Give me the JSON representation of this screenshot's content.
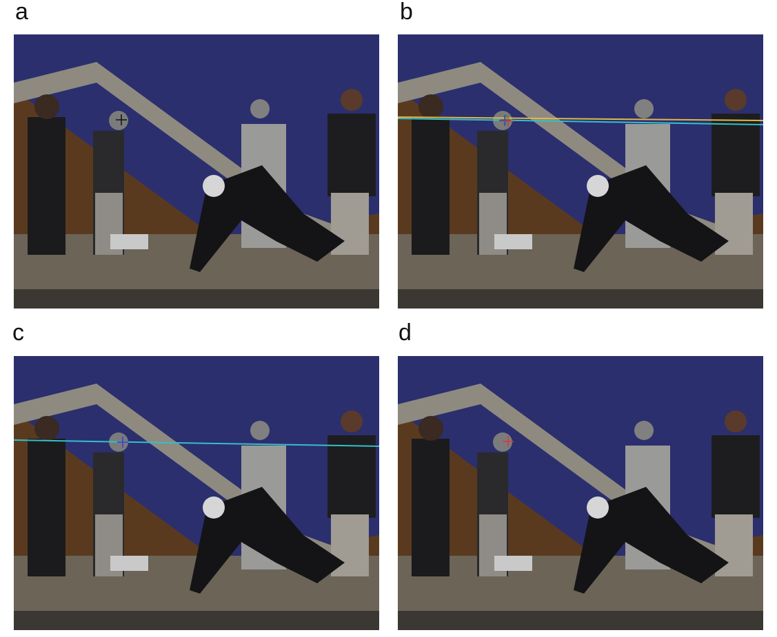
{
  "panels": [
    {
      "label": "a",
      "marks": [
        {
          "color": "#111111"
        }
      ],
      "lines": []
    },
    {
      "label": "b",
      "marks": [
        {
          "color": "#2a9a3a"
        },
        {
          "color": "#3b3bd6"
        },
        {
          "color": "#d63b3b"
        }
      ],
      "lines": [
        {
          "color": "#e0b84a"
        },
        {
          "color": "#34c0c8"
        }
      ]
    },
    {
      "label": "c",
      "marks": [
        {
          "color": "#3b3bd6"
        }
      ],
      "lines": [
        {
          "color": "#34c0c8"
        }
      ]
    },
    {
      "label": "d",
      "marks": [
        {
          "color": "#d63b3b"
        }
      ],
      "lines": []
    }
  ]
}
